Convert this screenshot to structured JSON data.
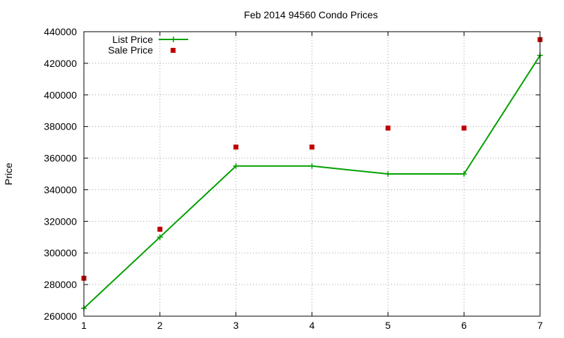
{
  "chart_data": {
    "type": "line",
    "title": "Feb 2014 94560 Condo Prices",
    "xlabel": "",
    "ylabel": "Price",
    "x": [
      1,
      2,
      3,
      4,
      5,
      6,
      7
    ],
    "xlim": [
      1,
      7
    ],
    "ylim": [
      260000,
      440000
    ],
    "xticks": [
      1,
      2,
      3,
      4,
      5,
      6,
      7
    ],
    "yticks": [
      260000,
      280000,
      300000,
      320000,
      340000,
      360000,
      380000,
      400000,
      420000,
      440000
    ],
    "grid": true,
    "legend_position": "top-left",
    "series": [
      {
        "name": "List Price",
        "style": "line+cross",
        "color": "#00a000",
        "values": [
          265000,
          310000,
          355000,
          355000,
          350000,
          350000,
          425000
        ]
      },
      {
        "name": "Sale Price",
        "style": "square",
        "color": "#c00000",
        "values": [
          284000,
          315000,
          367000,
          367000,
          379000,
          379000,
          435000
        ]
      }
    ]
  }
}
